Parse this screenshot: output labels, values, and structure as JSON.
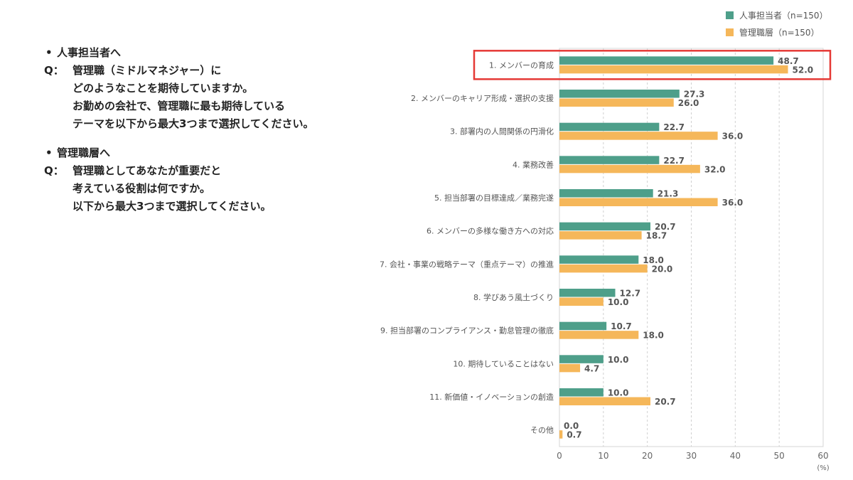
{
  "questions": [
    {
      "bullet": "人事担当者へ",
      "q_prefix": "Q：",
      "lines": [
        "管理職（ミドルマネジャー）に",
        "どのようなことを期待していますか。",
        "お勤めの会社で、管理職に最も期待している",
        "テーマを以下から最大3つまで選択してください。"
      ]
    },
    {
      "bullet": "管理職層へ",
      "q_prefix": "Q：",
      "lines": [
        "管理職としてあなたが重要だと",
        "考えている役割は何ですか。",
        "以下から最大3つまで選択してください。"
      ]
    }
  ],
  "chart_data": {
    "type": "bar",
    "orientation": "horizontal",
    "categories": [
      "1. メンバーの育成",
      "2. メンバーのキャリア形成・選択の支援",
      "3. 部署内の人間関係の円滑化",
      "4. 業務改善",
      "5. 担当部署の目標達成／業務完遂",
      "6. メンバーの多様な働き方への対応",
      "7. 会社・事業の戦略テーマ（重点テーマ）の推進",
      "8. 学びあう風土づくり",
      "9. 担当部署のコンプライアンス・勤怠管理の徹底",
      "10.  期待していることはない",
      "11. 新価値・イノベーションの創造",
      "その他"
    ],
    "series": [
      {
        "name": "人事担当者（n=150）",
        "color": "#4e9f8a",
        "values": [
          48.7,
          27.3,
          22.7,
          22.7,
          21.3,
          20.7,
          18.0,
          12.7,
          10.7,
          10.0,
          10.0,
          0.0
        ],
        "labels": [
          "48.7",
          "27.3",
          "22.7",
          "22.7",
          "21.3",
          "20.7",
          "18.0",
          "12.7",
          "10.7",
          "10.0",
          "10.0",
          "0.0"
        ]
      },
      {
        "name": "管理職層（n=150）",
        "color": "#f5b75a",
        "values": [
          52.0,
          26.0,
          36.0,
          32.0,
          36.0,
          18.7,
          20.0,
          10.0,
          18.0,
          4.7,
          20.7,
          0.7
        ],
        "labels": [
          "52.0",
          "26.0",
          "36.0",
          "32.0",
          "36.0",
          "18.7",
          "20.0",
          "10.0",
          "18.0",
          "4.7",
          "20.7",
          "0.7"
        ]
      }
    ],
    "xlim": [
      0,
      60
    ],
    "xticks": [
      "0",
      "10",
      "20",
      "30",
      "40",
      "50",
      "60"
    ],
    "unit": "(%)",
    "highlight_index": 0,
    "highlight_color": "#e53935",
    "grid": true,
    "legend_position": "top-right"
  }
}
